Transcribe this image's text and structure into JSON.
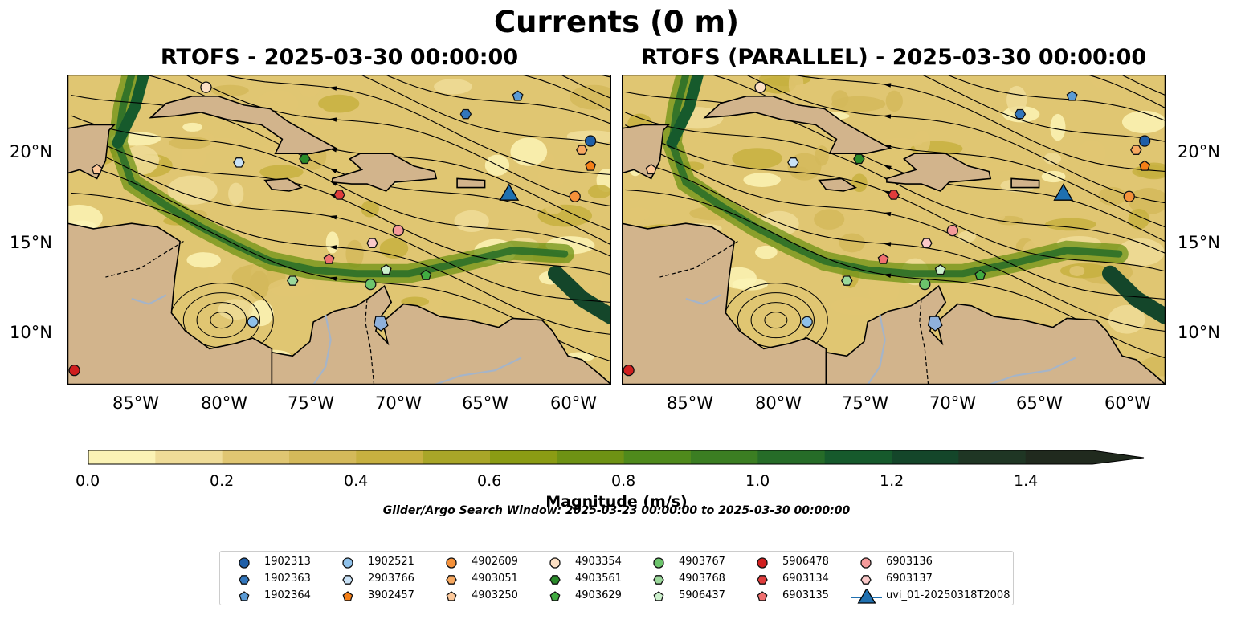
{
  "figure": {
    "title": "Currents (0 m)",
    "panels": [
      {
        "title": "RTOFS - 2025-03-30 00:00:00"
      },
      {
        "title": "RTOFS (PARALLEL) - 2025-03-30 00:00:00"
      }
    ],
    "lon_ticks": [
      "85°W",
      "80°W",
      "75°W",
      "70°W",
      "65°W",
      "60°W"
    ],
    "lat_ticks": [
      "20°N",
      "15°N",
      "10°N"
    ],
    "extent": {
      "lon": [
        -89.7,
        -58.3
      ],
      "lat": [
        7.0,
        24.3
      ]
    },
    "colors": {
      "land": "#d2b48c",
      "lake": "#8fb1dc",
      "river": "#a5b4c8",
      "glider": "#1f70b0"
    }
  },
  "colorbar": {
    "label": "Magnitude (m/s)",
    "ticks": [
      "0.0",
      "0.2",
      "0.4",
      "0.6",
      "0.8",
      "1.0",
      "1.2",
      "1.4"
    ],
    "levels": [
      0,
      0.1,
      0.2,
      0.3,
      0.4,
      0.5,
      0.6,
      0.7,
      0.8,
      0.9,
      1.0,
      1.1,
      1.2,
      1.3,
      1.4,
      1.5
    ],
    "colors": [
      "#fbf3b5",
      "#efdc98",
      "#e0c672",
      "#d4b95a",
      "#c7b040",
      "#a9a628",
      "#8b9c14",
      "#6e9214",
      "#4f8a1c",
      "#3b7e22",
      "#266c28",
      "#165a2c",
      "#14462a",
      "#1f3624",
      "#202a1e"
    ],
    "extend": "max"
  },
  "search_window": "Glider/Argo Search Window: 2025-03-23 00:00:00 to 2025-03-30 00:00:00",
  "legend": [
    {
      "label": "1902313",
      "marker": "circle",
      "color": "#1f5fa8"
    },
    {
      "label": "1902363",
      "marker": "hexagon",
      "color": "#3276bc"
    },
    {
      "label": "1902364",
      "marker": "pentagon",
      "color": "#5b9bd5"
    },
    {
      "label": "1902521",
      "marker": "circle",
      "color": "#8fc1ea"
    },
    {
      "label": "2903766",
      "marker": "hexagon",
      "color": "#c9e2f7"
    },
    {
      "label": "3902457",
      "marker": "pentagon",
      "color": "#f57f17"
    },
    {
      "label": "4902609",
      "marker": "circle",
      "color": "#f5913a"
    },
    {
      "label": "4903051",
      "marker": "hexagon",
      "color": "#f7a860"
    },
    {
      "label": "4903250",
      "marker": "pentagon",
      "color": "#fcc89a"
    },
    {
      "label": "4903354",
      "marker": "circle",
      "color": "#fde0c4"
    },
    {
      "label": "4903561",
      "marker": "hexagon",
      "color": "#2a8a2a"
    },
    {
      "label": "4903629",
      "marker": "pentagon",
      "color": "#41ab41"
    },
    {
      "label": "4903767",
      "marker": "circle",
      "color": "#6cc46c"
    },
    {
      "label": "4903768",
      "marker": "hexagon",
      "color": "#9bd89b"
    },
    {
      "label": "5906437",
      "marker": "pentagon",
      "color": "#ccf0cc"
    },
    {
      "label": "5906478",
      "marker": "circle",
      "color": "#d01f1f"
    },
    {
      "label": "6903134",
      "marker": "hexagon",
      "color": "#e03c3c"
    },
    {
      "label": "6903135",
      "marker": "pentagon",
      "color": "#f07070"
    },
    {
      "label": "6903136",
      "marker": "circle",
      "color": "#f59a9a"
    },
    {
      "label": "6903137",
      "marker": "hexagon",
      "color": "#fac8c8"
    },
    {
      "label": "uvi_01-20250318T2008",
      "marker": "triangle",
      "color": "#1f70b0"
    }
  ],
  "floats": [
    {
      "id": "1902313",
      "lon": -59.5,
      "lat": 20.6
    },
    {
      "id": "1902363",
      "lon": -66.7,
      "lat": 22.1
    },
    {
      "id": "1902364",
      "lon": -63.7,
      "lat": 23.1
    },
    {
      "id": "1902521",
      "lon": -79.0,
      "lat": 10.5
    },
    {
      "id": "2903766",
      "lon": -79.8,
      "lat": 19.4
    },
    {
      "id": "3902457",
      "lon": -59.5,
      "lat": 19.2
    },
    {
      "id": "4902609",
      "lon": -60.4,
      "lat": 17.5
    },
    {
      "id": "4903051",
      "lon": -60.0,
      "lat": 20.1
    },
    {
      "id": "4903250",
      "lon": -88.0,
      "lat": 19.0
    },
    {
      "id": "4903354",
      "lon": -81.7,
      "lat": 23.6
    },
    {
      "id": "4903561",
      "lon": -76.0,
      "lat": 19.6
    },
    {
      "id": "4903629",
      "lon": -69.0,
      "lat": 13.1
    },
    {
      "id": "4903767",
      "lon": -72.2,
      "lat": 12.6
    },
    {
      "id": "4903768",
      "lon": -76.7,
      "lat": 12.8
    },
    {
      "id": "5906437",
      "lon": -71.3,
      "lat": 13.4
    },
    {
      "id": "5906478",
      "lon": -89.3,
      "lat": 7.8
    },
    {
      "id": "6903134",
      "lon": -74.0,
      "lat": 17.6
    },
    {
      "id": "6903135",
      "lon": -74.6,
      "lat": 14.0
    },
    {
      "id": "6903136",
      "lon": -70.6,
      "lat": 15.6
    },
    {
      "id": "6903137",
      "lon": -72.1,
      "lat": 14.9
    }
  ],
  "glider": {
    "id": "uvi_01-20250318T2008",
    "lon": -64.2,
    "lat": 17.5
  }
}
